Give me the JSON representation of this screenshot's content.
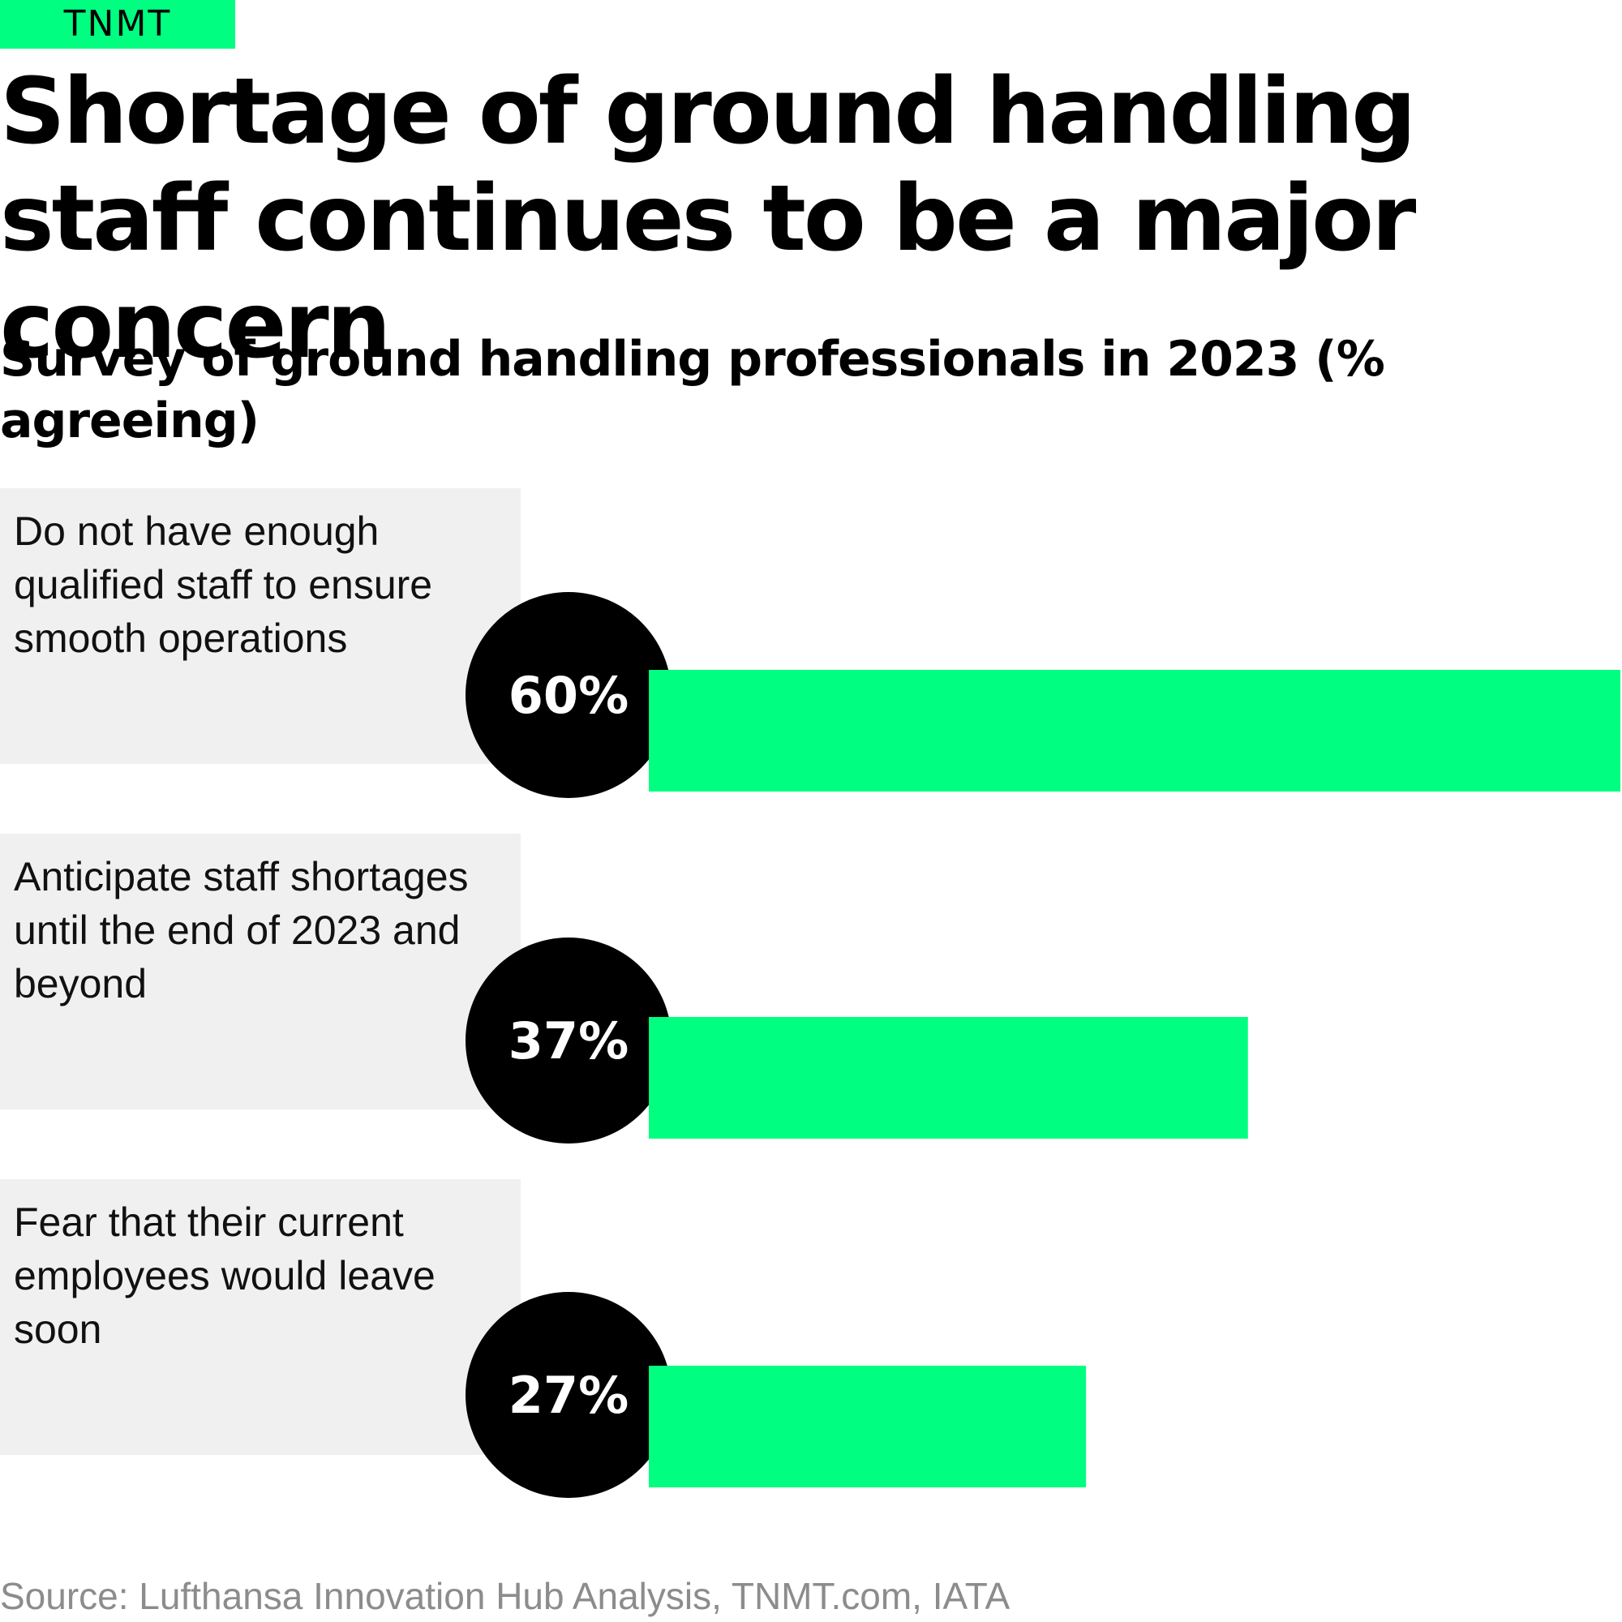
{
  "brand": {
    "logo_text": "TNMT",
    "accent_color": "#00ff80"
  },
  "header": {
    "title": "Shortage of ground handling staff continues to be a major concern",
    "subtitle": "Survey of ground handling professionals in 2023 (% agreeing)"
  },
  "chart_data": {
    "type": "bar",
    "orientation": "horizontal",
    "categories": [
      "Do not have enough qualified staff to ensure smooth operations",
      "Anticipate staff shortages until the end of 2023 and beyond",
      "Fear that their current employees would leave soon"
    ],
    "values": [
      60,
      37,
      27
    ],
    "value_labels": [
      "60%",
      "37%",
      "27%"
    ],
    "unit": "%",
    "xlim": [
      0,
      60
    ],
    "grid": false,
    "bar_color": "#00ff80",
    "label_circle_color": "#000000"
  },
  "footer": {
    "source": "Source: Lufthansa Innovation Hub Analysis, TNMT.com, IATA"
  }
}
